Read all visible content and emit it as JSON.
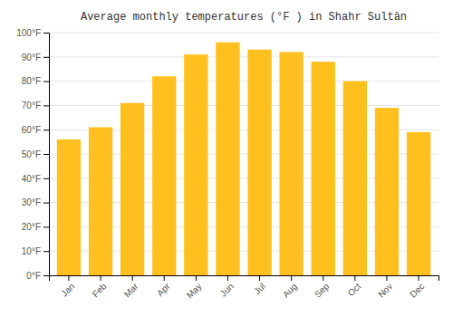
{
  "chart_data": {
    "type": "bar",
    "title": "Average monthly temperatures (°F ) in Shahr Sultān",
    "categories": [
      "Jan",
      "Feb",
      "Mar",
      "Apr",
      "May",
      "Jun",
      "Jul",
      "Aug",
      "Sep",
      "Oct",
      "Nov",
      "Dec"
    ],
    "values": [
      56,
      61,
      71,
      82,
      91,
      96,
      93,
      92,
      88,
      80,
      69,
      59
    ],
    "color": "#FFC020",
    "ylim": [
      0,
      100
    ],
    "yticks": [
      {
        "value": 0,
        "label": "0°F"
      },
      {
        "value": 10,
        "label": "10°F"
      },
      {
        "value": 20,
        "label": "20°F"
      },
      {
        "value": 30,
        "label": "30°F"
      },
      {
        "value": 40,
        "label": "40°F"
      },
      {
        "value": 50,
        "label": "50°F"
      },
      {
        "value": 60,
        "label": "60°F"
      },
      {
        "value": 70,
        "label": "70°F"
      },
      {
        "value": 80,
        "label": "80°F"
      },
      {
        "value": 90,
        "label": "90°F"
      },
      {
        "value": 100,
        "label": "100°F"
      }
    ],
    "grid": true
  }
}
